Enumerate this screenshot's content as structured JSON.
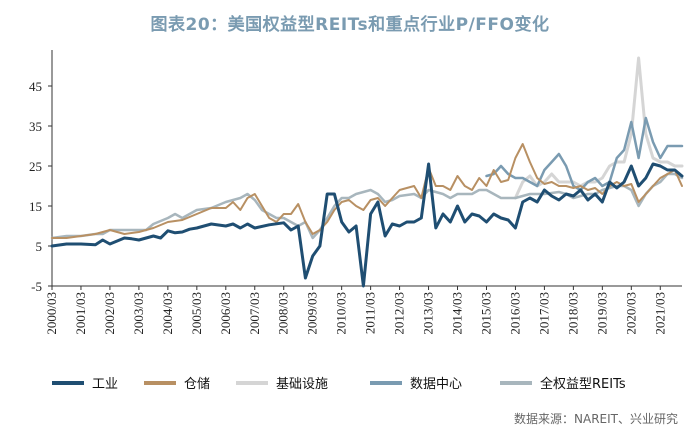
{
  "chart_data": {
    "type": "line",
    "title": "图表20：美国权益型REITs和重点行业P/FFO变化",
    "source": "数据来源：NAREIT、兴业研究",
    "xlabel": "",
    "ylabel": "",
    "ylim": [
      -5,
      52
    ],
    "yticks": [
      "-5",
      "5",
      "15",
      "25",
      "35",
      "45"
    ],
    "x_start": 2000.0,
    "x_end": 2021.75,
    "xtick_labels": [
      "2000/03",
      "2001/03",
      "2002/03",
      "2003/03",
      "2004/03",
      "2005/03",
      "2006/03",
      "2007/03",
      "2008/03",
      "2009/03",
      "2010/03",
      "2011/03",
      "2012/03",
      "2013/03",
      "2014/03",
      "2015/03",
      "2016/03",
      "2017/03",
      "2018/03",
      "2019/03",
      "2020/03",
      "2021/03"
    ],
    "series": [
      {
        "name": "工业",
        "color": "#1f4e72",
        "width": 3,
        "points": [
          [
            2000.0,
            5
          ],
          [
            2000.5,
            5.5
          ],
          [
            2001.0,
            5.5
          ],
          [
            2001.5,
            5.3
          ],
          [
            2001.75,
            6.5
          ],
          [
            2002.0,
            5.5
          ],
          [
            2002.5,
            7
          ],
          [
            2002.75,
            6.8
          ],
          [
            2003.0,
            6.5
          ],
          [
            2003.5,
            7.5
          ],
          [
            2003.75,
            7
          ],
          [
            2004.0,
            8.8
          ],
          [
            2004.25,
            8.3
          ],
          [
            2004.5,
            8.5
          ],
          [
            2004.75,
            9.2
          ],
          [
            2005.0,
            9.5
          ],
          [
            2005.5,
            10.5
          ],
          [
            2006.0,
            10
          ],
          [
            2006.25,
            10.5
          ],
          [
            2006.5,
            9.5
          ],
          [
            2006.75,
            10.5
          ],
          [
            2007.0,
            9.5
          ],
          [
            2007.5,
            10.3
          ],
          [
            2008.0,
            10.8
          ],
          [
            2008.25,
            9
          ],
          [
            2008.5,
            10
          ],
          [
            2008.75,
            -3
          ],
          [
            2009.0,
            2.5
          ],
          [
            2009.25,
            5
          ],
          [
            2009.5,
            18
          ],
          [
            2009.75,
            18
          ],
          [
            2010.0,
            11
          ],
          [
            2010.25,
            8.5
          ],
          [
            2010.5,
            10
          ],
          [
            2010.75,
            -5
          ],
          [
            2011.0,
            13
          ],
          [
            2011.25,
            16
          ],
          [
            2011.5,
            7.5
          ],
          [
            2011.75,
            10.5
          ],
          [
            2012.0,
            10
          ],
          [
            2012.25,
            11
          ],
          [
            2012.5,
            11
          ],
          [
            2012.75,
            12
          ],
          [
            2013.0,
            25.5
          ],
          [
            2013.25,
            9.5
          ],
          [
            2013.5,
            13
          ],
          [
            2013.75,
            11
          ],
          [
            2014.0,
            15
          ],
          [
            2014.25,
            11
          ],
          [
            2014.5,
            13
          ],
          [
            2014.75,
            12.5
          ],
          [
            2015.0,
            11
          ],
          [
            2015.25,
            13
          ],
          [
            2015.5,
            12
          ],
          [
            2015.75,
            11.5
          ],
          [
            2016.0,
            9.5
          ],
          [
            2016.25,
            16
          ],
          [
            2016.5,
            17
          ],
          [
            2016.75,
            16
          ],
          [
            2017.0,
            19
          ],
          [
            2017.25,
            17.5
          ],
          [
            2017.5,
            16.5
          ],
          [
            2017.75,
            18
          ],
          [
            2018.0,
            17.5
          ],
          [
            2018.25,
            19
          ],
          [
            2018.5,
            16.5
          ],
          [
            2018.75,
            18
          ],
          [
            2019.0,
            16
          ],
          [
            2019.25,
            21
          ],
          [
            2019.5,
            19.5
          ],
          [
            2019.75,
            21
          ],
          [
            2020.0,
            25
          ],
          [
            2020.25,
            20
          ],
          [
            2020.5,
            22
          ],
          [
            2020.75,
            25.5
          ],
          [
            2021.0,
            25
          ],
          [
            2021.25,
            24
          ],
          [
            2021.5,
            24
          ],
          [
            2021.75,
            22.5
          ]
        ]
      },
      {
        "name": "仓储",
        "color": "#b89063",
        "width": 2,
        "points": [
          [
            2000.0,
            7
          ],
          [
            2000.5,
            7
          ],
          [
            2001.0,
            7.5
          ],
          [
            2001.5,
            8
          ],
          [
            2001.75,
            8.5
          ],
          [
            2002.0,
            9
          ],
          [
            2002.5,
            8
          ],
          [
            2003.0,
            8.5
          ],
          [
            2003.5,
            9.5
          ],
          [
            2004.0,
            11
          ],
          [
            2004.5,
            11.5
          ],
          [
            2005.0,
            13
          ],
          [
            2005.5,
            14.5
          ],
          [
            2006.0,
            14.5
          ],
          [
            2006.25,
            16
          ],
          [
            2006.5,
            14
          ],
          [
            2006.75,
            17
          ],
          [
            2007.0,
            18
          ],
          [
            2007.25,
            15
          ],
          [
            2007.5,
            12
          ],
          [
            2007.75,
            11
          ],
          [
            2008.0,
            13
          ],
          [
            2008.25,
            13
          ],
          [
            2008.5,
            15.5
          ],
          [
            2008.75,
            11
          ],
          [
            2009.0,
            8
          ],
          [
            2009.25,
            9
          ],
          [
            2009.5,
            11
          ],
          [
            2009.75,
            14
          ],
          [
            2010.0,
            16
          ],
          [
            2010.25,
            16.5
          ],
          [
            2010.5,
            15
          ],
          [
            2010.75,
            14
          ],
          [
            2011.0,
            16.5
          ],
          [
            2011.25,
            17
          ],
          [
            2011.5,
            15
          ],
          [
            2011.75,
            17
          ],
          [
            2012.0,
            19
          ],
          [
            2012.25,
            19.5
          ],
          [
            2012.5,
            20
          ],
          [
            2012.75,
            17
          ],
          [
            2013.0,
            24.5
          ],
          [
            2013.25,
            20
          ],
          [
            2013.5,
            20
          ],
          [
            2013.75,
            19
          ],
          [
            2014.0,
            22.5
          ],
          [
            2014.25,
            20
          ],
          [
            2014.5,
            19
          ],
          [
            2014.75,
            22
          ],
          [
            2015.0,
            20
          ],
          [
            2015.25,
            24
          ],
          [
            2015.5,
            21
          ],
          [
            2015.75,
            21.5
          ],
          [
            2016.0,
            27
          ],
          [
            2016.25,
            30.5
          ],
          [
            2016.5,
            26
          ],
          [
            2016.75,
            22
          ],
          [
            2017.0,
            20.5
          ],
          [
            2017.25,
            21
          ],
          [
            2017.5,
            20
          ],
          [
            2017.75,
            20
          ],
          [
            2018.0,
            19.5
          ],
          [
            2018.25,
            20
          ],
          [
            2018.5,
            19
          ],
          [
            2018.75,
            19.5
          ],
          [
            2019.0,
            18
          ],
          [
            2019.25,
            20
          ],
          [
            2019.5,
            21
          ],
          [
            2019.75,
            20
          ],
          [
            2020.0,
            20.5
          ],
          [
            2020.25,
            16
          ],
          [
            2020.5,
            18
          ],
          [
            2020.75,
            20
          ],
          [
            2021.0,
            22
          ],
          [
            2021.25,
            23
          ],
          [
            2021.5,
            24
          ],
          [
            2021.75,
            20
          ]
        ]
      },
      {
        "name": "基础设施",
        "color": "#d5d5d5",
        "width": 3,
        "points": [
          [
            2016.0,
            17
          ],
          [
            2016.25,
            21
          ],
          [
            2016.5,
            22.5
          ],
          [
            2016.75,
            20
          ],
          [
            2017.0,
            21
          ],
          [
            2017.25,
            23
          ],
          [
            2017.5,
            21
          ],
          [
            2017.75,
            21
          ],
          [
            2018.0,
            21
          ],
          [
            2018.25,
            20
          ],
          [
            2018.5,
            21
          ],
          [
            2018.75,
            21
          ],
          [
            2019.0,
            22
          ],
          [
            2019.25,
            25
          ],
          [
            2019.5,
            26
          ],
          [
            2019.75,
            26
          ],
          [
            2020.0,
            33
          ],
          [
            2020.25,
            52
          ],
          [
            2020.5,
            33
          ],
          [
            2020.75,
            27
          ],
          [
            2021.0,
            26
          ],
          [
            2021.25,
            26
          ],
          [
            2021.5,
            25
          ],
          [
            2021.75,
            25
          ]
        ]
      },
      {
        "name": "数据中心",
        "color": "#7a9bb1",
        "width": 2.5,
        "points": [
          [
            2015.0,
            22.5
          ],
          [
            2015.25,
            23
          ],
          [
            2015.5,
            25
          ],
          [
            2015.75,
            23
          ],
          [
            2016.0,
            22
          ],
          [
            2016.25,
            22
          ],
          [
            2016.5,
            21
          ],
          [
            2016.75,
            20
          ],
          [
            2017.0,
            24
          ],
          [
            2017.25,
            26
          ],
          [
            2017.5,
            28
          ],
          [
            2017.75,
            25
          ],
          [
            2018.0,
            20
          ],
          [
            2018.25,
            19
          ],
          [
            2018.5,
            21
          ],
          [
            2018.75,
            22
          ],
          [
            2019.0,
            20
          ],
          [
            2019.25,
            21
          ],
          [
            2019.5,
            27
          ],
          [
            2019.75,
            29
          ],
          [
            2020.0,
            36
          ],
          [
            2020.25,
            27
          ],
          [
            2020.5,
            37
          ],
          [
            2020.75,
            31
          ],
          [
            2021.0,
            27
          ],
          [
            2021.25,
            30
          ],
          [
            2021.5,
            30
          ],
          [
            2021.75,
            30
          ]
        ]
      },
      {
        "name": "全权益型REITs",
        "color": "#a8b6bd",
        "width": 2.5,
        "points": [
          [
            2000.0,
            7
          ],
          [
            2000.5,
            7.5
          ],
          [
            2001.0,
            7.5
          ],
          [
            2001.5,
            8
          ],
          [
            2001.75,
            8
          ],
          [
            2002.0,
            9
          ],
          [
            2002.5,
            9
          ],
          [
            2003.0,
            9
          ],
          [
            2003.25,
            9
          ],
          [
            2003.5,
            10.5
          ],
          [
            2004.0,
            12
          ],
          [
            2004.25,
            13
          ],
          [
            2004.5,
            12
          ],
          [
            2005.0,
            14
          ],
          [
            2005.5,
            14.5
          ],
          [
            2006.0,
            16
          ],
          [
            2006.5,
            17
          ],
          [
            2006.75,
            18
          ],
          [
            2007.0,
            16.5
          ],
          [
            2007.25,
            14
          ],
          [
            2007.5,
            13
          ],
          [
            2007.75,
            12
          ],
          [
            2008.0,
            12
          ],
          [
            2008.5,
            10
          ],
          [
            2008.75,
            11
          ],
          [
            2009.0,
            7
          ],
          [
            2009.25,
            9
          ],
          [
            2009.5,
            12
          ],
          [
            2009.75,
            15
          ],
          [
            2010.0,
            17
          ],
          [
            2010.25,
            17
          ],
          [
            2010.5,
            18
          ],
          [
            2010.75,
            18.5
          ],
          [
            2011.0,
            19
          ],
          [
            2011.25,
            18
          ],
          [
            2011.5,
            16
          ],
          [
            2011.75,
            16.5
          ],
          [
            2012.0,
            17.5
          ],
          [
            2012.5,
            18
          ],
          [
            2012.75,
            17
          ],
          [
            2013.0,
            19
          ],
          [
            2013.5,
            18
          ],
          [
            2013.75,
            17
          ],
          [
            2014.0,
            18
          ],
          [
            2014.5,
            18
          ],
          [
            2014.75,
            19
          ],
          [
            2015.0,
            19
          ],
          [
            2015.5,
            17
          ],
          [
            2015.75,
            17
          ],
          [
            2016.0,
            17
          ],
          [
            2016.5,
            18
          ],
          [
            2016.75,
            18
          ],
          [
            2017.0,
            18
          ],
          [
            2017.5,
            18.5
          ],
          [
            2017.75,
            18
          ],
          [
            2018.0,
            17
          ],
          [
            2018.5,
            18
          ],
          [
            2018.75,
            18
          ],
          [
            2019.0,
            19
          ],
          [
            2019.25,
            19.5
          ],
          [
            2019.5,
            20
          ],
          [
            2019.75,
            20
          ],
          [
            2020.0,
            19
          ],
          [
            2020.25,
            15
          ],
          [
            2020.5,
            18
          ],
          [
            2020.75,
            20
          ],
          [
            2021.0,
            21
          ],
          [
            2021.25,
            23
          ],
          [
            2021.5,
            23
          ],
          [
            2021.75,
            22
          ]
        ]
      }
    ]
  }
}
